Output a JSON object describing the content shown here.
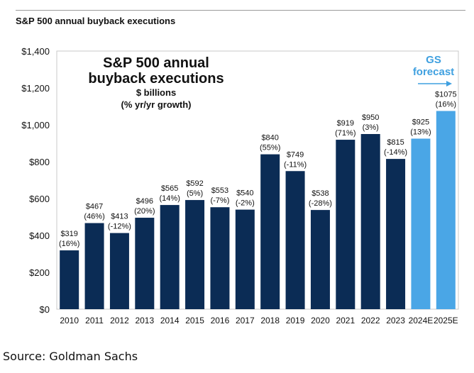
{
  "header": {
    "title": "S&P 500 annual buyback executions"
  },
  "chart_data": {
    "type": "bar",
    "title": "S&P 500 annual buyback executions",
    "subtitle": [
      "$ billions",
      "(% yr/yr growth)"
    ],
    "xlabel": "",
    "ylabel": "",
    "ylim": [
      0,
      1400
    ],
    "yticks": [
      0,
      200,
      400,
      600,
      800,
      1000,
      1200,
      1400
    ],
    "ytick_labels": [
      "$0",
      "$200",
      "$400",
      "$600",
      "$800",
      "$1,000",
      "$1,200",
      "$1,400"
    ],
    "categories": [
      "2010",
      "2011",
      "2012",
      "2013",
      "2014",
      "2015",
      "2016",
      "2017",
      "2018",
      "2019",
      "2020",
      "2021",
      "2022",
      "2023",
      "2024E",
      "2025E"
    ],
    "values": [
      319,
      467,
      413,
      496,
      565,
      592,
      553,
      540,
      840,
      749,
      538,
      919,
      950,
      815,
      925,
      1075
    ],
    "value_labels": [
      "$319",
      "$467",
      "$413",
      "$496",
      "$565",
      "$592",
      "$553",
      "$540",
      "$840",
      "$749",
      "$538",
      "$919",
      "$950",
      "$815",
      "$925",
      "$1075"
    ],
    "growth_labels": [
      "(16%)",
      "(46%)",
      "(-12%)",
      "(20%)",
      "(14%)",
      "(5%)",
      "(-7%)",
      "(-2%)",
      "(55%)",
      "(-11%)",
      "(-28%)",
      "(71%)",
      "(3%)",
      "(-14%)",
      "(13%)",
      "(16%)"
    ],
    "forecast_flags": [
      false,
      false,
      false,
      false,
      false,
      false,
      false,
      false,
      false,
      false,
      false,
      false,
      false,
      false,
      true,
      true
    ],
    "annotation": [
      "GS",
      "forecast"
    ],
    "colors": {
      "actual": "#0b2c55",
      "forecast": "#4aa6e6",
      "annotation": "#3fa0e0"
    }
  },
  "source": "Source: Goldman Sachs"
}
